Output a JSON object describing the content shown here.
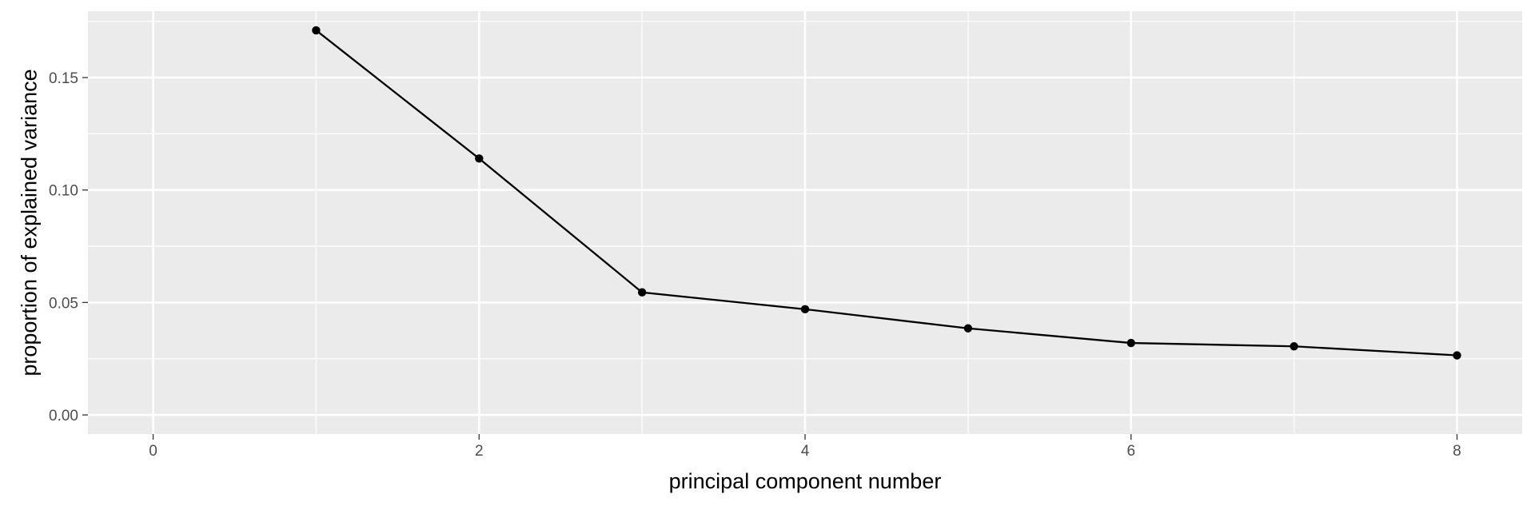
{
  "chart_data": {
    "type": "line",
    "xlabel": "principal component number",
    "ylabel": "proportion of explained variance",
    "xlim": [
      -0.4,
      8.4
    ],
    "ylim": [
      -0.0085,
      0.1795
    ],
    "x_ticks": [
      0,
      2,
      4,
      6,
      8
    ],
    "x_tick_labels": [
      "0",
      "2",
      "4",
      "6",
      "8"
    ],
    "x_minor_ticks": [
      1,
      3,
      5,
      7
    ],
    "y_ticks": [
      0.0,
      0.05,
      0.1,
      0.15
    ],
    "y_tick_labels": [
      "0.00",
      "0.05",
      "0.10",
      "0.15"
    ],
    "y_minor_ticks": [
      0.025,
      0.075,
      0.125,
      0.175
    ],
    "grid": true,
    "series": [
      {
        "x": [
          1,
          2,
          3,
          4,
          5,
          6,
          7,
          8
        ],
        "values": [
          0.171,
          0.114,
          0.0545,
          0.047,
          0.0385,
          0.032,
          0.0305,
          0.0265
        ],
        "color": "#000000"
      }
    ],
    "panel_background": "#ebebeb",
    "grid_color": "#ffffff"
  }
}
